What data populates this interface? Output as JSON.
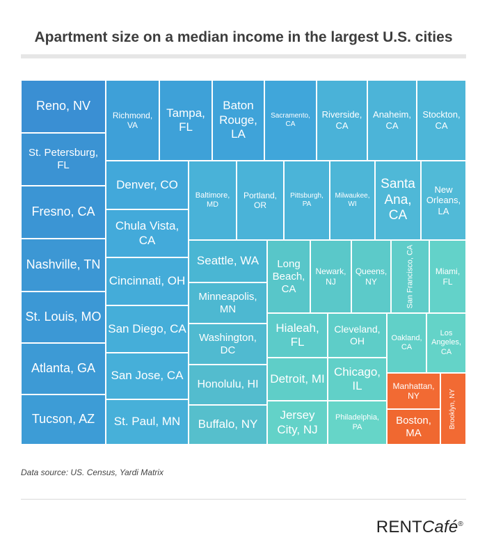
{
  "header": {
    "title": "Apartment size on a median income in the largest U.S. cities"
  },
  "footer": {
    "source": "Data source: US. Census, Yardi Matrix"
  },
  "logo": {
    "brand": "RENT",
    "cafe": "Café",
    "mark": "®"
  },
  "chart_data": {
    "type": "treemap",
    "title": "Apartment size on a median income in the largest U.S. cities",
    "tiles": [
      {
        "label": "Reno, NV",
        "color": "#3a8fd3",
        "vertical": false
      },
      {
        "label": "St. Petersburg, FL",
        "color": "#3b93d3",
        "vertical": false
      },
      {
        "label": "Fresno, CA",
        "color": "#3b95d4",
        "vertical": false
      },
      {
        "label": "Nashville, TN",
        "color": "#3c97d4",
        "vertical": false
      },
      {
        "label": "St. Louis, MO",
        "color": "#3c98d5",
        "vertical": false
      },
      {
        "label": "Atlanta, GA",
        "color": "#3d9ad5",
        "vertical": false
      },
      {
        "label": "Tucson, AZ",
        "color": "#3d9cd6",
        "vertical": false
      },
      {
        "label": "Richmond, VA",
        "color": "#3ea0d8",
        "vertical": false
      },
      {
        "label": "Tampa, FL",
        "color": "#3ea1d8",
        "vertical": false
      },
      {
        "label": "Baton Rouge, LA",
        "color": "#3fa3d9",
        "vertical": false
      },
      {
        "label": "Sacramento, CA",
        "color": "#40a6da",
        "vertical": false
      },
      {
        "label": "Riverside, CA",
        "color": "#4ab2d8",
        "vertical": false
      },
      {
        "label": "Anaheim, CA",
        "color": "#4cb4d8",
        "vertical": false
      },
      {
        "label": "Stockton, CA",
        "color": "#4db6d8",
        "vertical": false
      },
      {
        "label": "Denver, CO",
        "color": "#42a8da",
        "vertical": false
      },
      {
        "label": "Chula Vista, CA",
        "color": "#43aada",
        "vertical": false
      },
      {
        "label": "Cincinnati, OH",
        "color": "#44acd9",
        "vertical": false
      },
      {
        "label": "San Diego, CA",
        "color": "#45aed9",
        "vertical": false
      },
      {
        "label": "San Jose, CA",
        "color": "#46afd9",
        "vertical": false
      },
      {
        "label": "St. Paul, MN",
        "color": "#47b0d9",
        "vertical": false
      },
      {
        "label": "Baltimore, MD",
        "color": "#49b2d8",
        "vertical": false
      },
      {
        "label": "Portland, OR",
        "color": "#4ab3d8",
        "vertical": false
      },
      {
        "label": "Pittsburgh, PA",
        "color": "#4bb4d8",
        "vertical": false
      },
      {
        "label": "Milwaukee, WI",
        "color": "#4db6d7",
        "vertical": false
      },
      {
        "label": "Santa Ana, CA",
        "color": "#4fb8d7",
        "vertical": false
      },
      {
        "label": "New Orleans, LA",
        "color": "#51bad7",
        "vertical": false
      },
      {
        "label": "Seattle, WA",
        "color": "#4ab6d3",
        "vertical": false
      },
      {
        "label": "Minneapolis, MN",
        "color": "#4db8d1",
        "vertical": false
      },
      {
        "label": "Washington, DC",
        "color": "#50bad0",
        "vertical": false
      },
      {
        "label": "Honolulu, HI",
        "color": "#53bcce",
        "vertical": false
      },
      {
        "label": "Buffalo, NY",
        "color": "#56bfcc",
        "vertical": false
      },
      {
        "label": "Long Beach, CA",
        "color": "#58c6c9",
        "vertical": false
      },
      {
        "label": "Newark, NJ",
        "color": "#5ac8c9",
        "vertical": false
      },
      {
        "label": "Queens, NY",
        "color": "#5ccac9",
        "vertical": false
      },
      {
        "label": "San Francisco, CA",
        "color": "#5fcdc9",
        "vertical": true
      },
      {
        "label": "Miami, FL",
        "color": "#63d2c9",
        "vertical": false
      },
      {
        "label": "Hialeah, FL",
        "color": "#5ccbc9",
        "vertical": false
      },
      {
        "label": "Cleveland, OH",
        "color": "#5ecdc8",
        "vertical": false
      },
      {
        "label": "Oakland, CA",
        "color": "#61d0c8",
        "vertical": false
      },
      {
        "label": "Los Angeles, CA",
        "color": "#64d3c8",
        "vertical": false
      },
      {
        "label": "Detroit, MI",
        "color": "#5fcec8",
        "vertical": false
      },
      {
        "label": "Chicago, IL",
        "color": "#61d0c8",
        "vertical": false
      },
      {
        "label": "Jersey City, NJ",
        "color": "#63d2c8",
        "vertical": false
      },
      {
        "label": "Philadelphia, PA",
        "color": "#66d5c8",
        "vertical": false
      },
      {
        "label": "Manhattan, NY",
        "color": "#f26a33",
        "vertical": false
      },
      {
        "label": "Boston, MA",
        "color": "#f06830",
        "vertical": false
      },
      {
        "label": "Brooklyn, NY",
        "color": "#f26a33",
        "vertical": true
      }
    ]
  }
}
